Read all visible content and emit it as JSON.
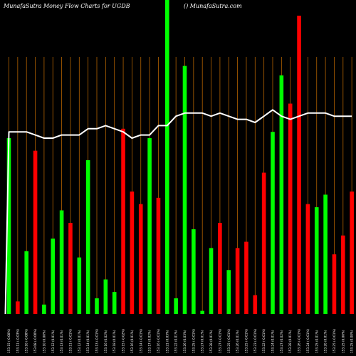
{
  "header": {
    "left": "MunafaSutra  Money Flow  Charts for UGDB",
    "right": "() MunafaSutra.com"
  },
  "chart_data": {
    "type": "bar",
    "ylim": [
      0,
      100
    ],
    "grid": "vertical",
    "colors": {
      "up": "#00ff00",
      "down": "#ff0000",
      "grid": "#b36200",
      "line": "#ffffff"
    },
    "categories": [
      "153.15 (-0.00%)",
      "153.11 (-0.03%)",
      "153.10 (-0.00%)",
      "153.08 (-0.00%)",
      "153.10 (0.00%)",
      "153.12 (0.01%)",
      "153.13 (0.01%)",
      "153.11 (-0.01%)",
      "153.12 (0.01%)",
      "153.14 (0.01%)",
      "153.13 (-0.01%)",
      "153.16 (0.02%)",
      "153.18 (0.01%)",
      "153.15 (-0.02%)",
      "153.16 (0.01%)",
      "153.14 (-0.01%)",
      "153.17 (0.02%)",
      "153.16 (-0.01%)",
      "153.21 (0.03%)",
      "153.22 (0.01%)",
      "153.26 (0.03%)",
      "153.25 (-0.01%)",
      "153.27 (0.01%)",
      "153.28 (0.01%)",
      "153.27 (-0.01%)",
      "153.25 (-0.01%)",
      "153.26 (0.01%)",
      "153.25 (-0.01%)",
      "153.23 (-0.01%)",
      "153.22 (-0.01%)",
      "153.24 (0.01%)",
      "153.27 (0.02%)",
      "153.28 (0.01%)",
      "153.26 (-0.01%)",
      "153.24 (-0.01%)",
      "153.25 (0.01%)",
      "153.26 (0.01%)",
      "153.25 (-0.01%)",
      "153.25 (0.00%)",
      "153.25 (0.00%)"
    ],
    "series": [
      {
        "values": [
          56,
          4,
          20,
          52,
          3,
          24,
          33,
          29,
          18,
          49,
          5,
          11,
          7,
          59,
          39,
          35,
          56,
          37,
          100,
          5,
          79,
          27,
          1,
          21,
          29,
          14,
          21,
          23,
          6,
          45,
          58,
          76,
          67,
          95,
          35,
          34,
          38,
          19,
          25,
          39
        ],
        "direction": [
          "up",
          "down",
          "up",
          "down",
          "up",
          "up",
          "up",
          "down",
          "up",
          "up",
          "up",
          "up",
          "up",
          "down",
          "down",
          "down",
          "up",
          "down",
          "up",
          "up",
          "up",
          "up",
          "up",
          "up",
          "down",
          "up",
          "down",
          "down",
          "down",
          "down",
          "up",
          "up",
          "down",
          "down",
          "down",
          "up",
          "up",
          "down",
          "down",
          "down"
        ]
      },
      {
        "values": [
          58,
          58,
          58,
          57,
          56,
          56,
          57,
          57,
          57,
          59,
          59,
          60,
          59,
          58,
          56,
          57,
          57,
          60,
          60,
          63,
          64,
          64,
          64,
          63,
          64,
          63,
          62,
          62,
          61,
          63,
          65,
          63,
          62,
          63,
          64,
          64,
          64,
          63,
          63,
          63
        ]
      }
    ]
  }
}
